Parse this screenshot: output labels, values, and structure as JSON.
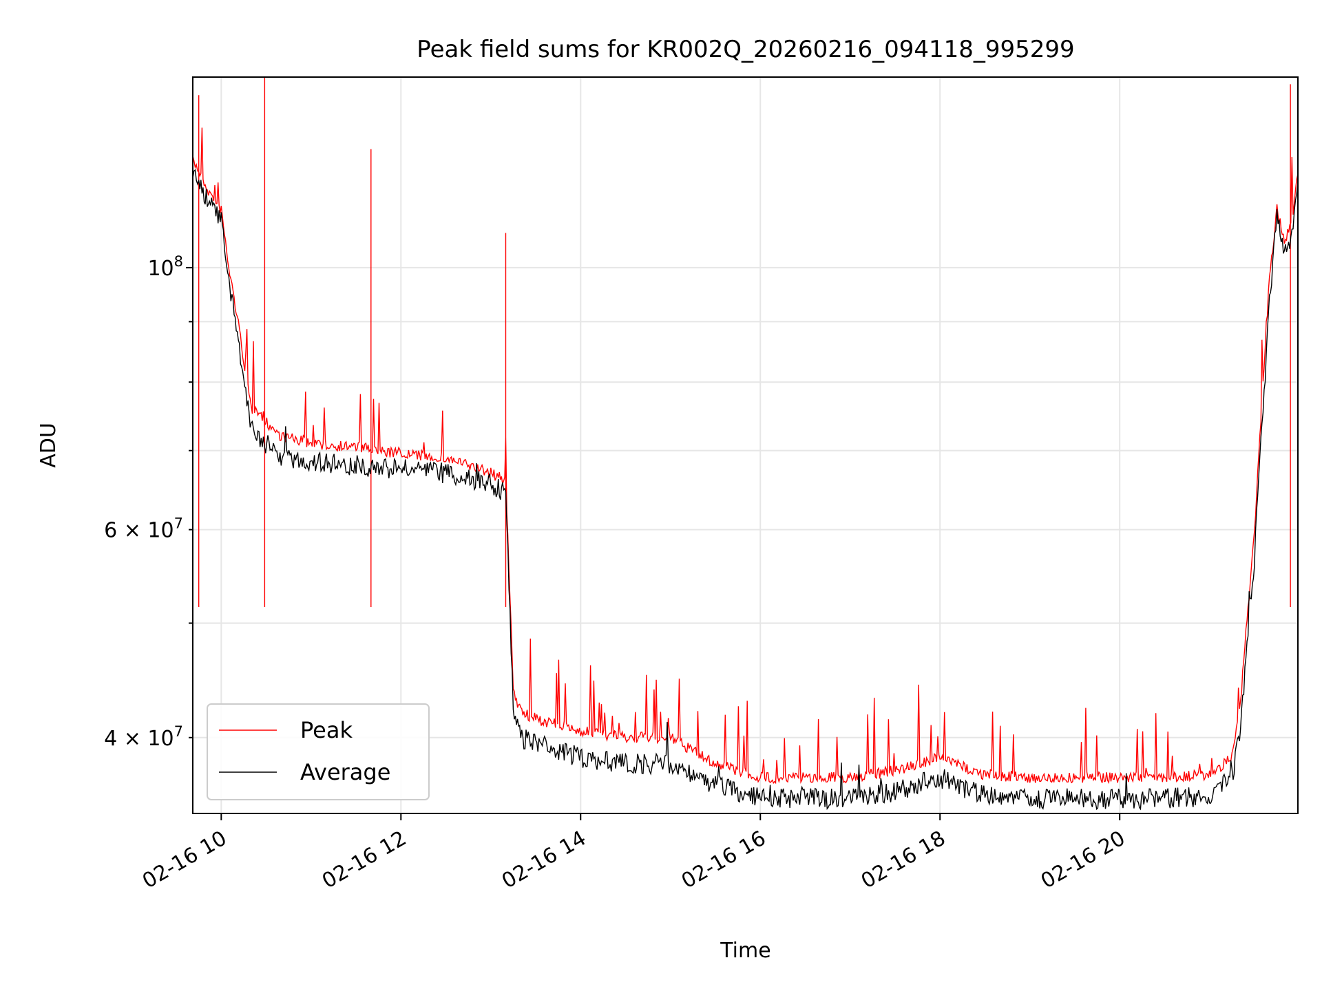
{
  "chart_data": {
    "type": "line",
    "title": "Peak field sums for KR002Q_20260216_094118_995299",
    "xlabel": "Time",
    "ylabel": "ADU",
    "y_scale": "log",
    "grid": true,
    "legend_position": "lower-left",
    "x_range": [
      "2026-02-16 09:41",
      "2026-02-16 21:59"
    ],
    "y_range": [
      34500000,
      145000000
    ],
    "x_ticks": [
      {
        "value": "2026-02-16 10:00",
        "label": "02-16 10"
      },
      {
        "value": "2026-02-16 12:00",
        "label": "02-16 12"
      },
      {
        "value": "2026-02-16 14:00",
        "label": "02-16 14"
      },
      {
        "value": "2026-02-16 16:00",
        "label": "02-16 16"
      },
      {
        "value": "2026-02-16 18:00",
        "label": "02-16 18"
      },
      {
        "value": "2026-02-16 20:00",
        "label": "02-16 20"
      }
    ],
    "y_ticks_major": [
      {
        "value": 100000000,
        "base": "10",
        "exp": "8"
      }
    ],
    "y_ticks_minor": [
      {
        "value": 40000000,
        "base": "4 × 10",
        "exp": "7"
      },
      {
        "value": 50000000
      },
      {
        "value": 60000000,
        "base": "6 × 10",
        "exp": "7"
      },
      {
        "value": 70000000
      },
      {
        "value": 80000000
      },
      {
        "value": 90000000
      }
    ],
    "series": [
      {
        "name": "Peak",
        "color": "#ff0000",
        "x": [
          "2026-02-16 09:41",
          "2026-02-16 09:45",
          "2026-02-16 09:50",
          "2026-02-16 09:55",
          "2026-02-16 10:00",
          "2026-02-16 10:05",
          "2026-02-16 10:10",
          "2026-02-16 10:20",
          "2026-02-16 10:40",
          "2026-02-16 11:00",
          "2026-02-16 11:30",
          "2026-02-16 12:00",
          "2026-02-16 12:30",
          "2026-02-16 13:00",
          "2026-02-16 13:10",
          "2026-02-16 13:15",
          "2026-02-16 13:20",
          "2026-02-16 13:30",
          "2026-02-16 14:00",
          "2026-02-16 14:30",
          "2026-02-16 15:00",
          "2026-02-16 15:30",
          "2026-02-16 16:00",
          "2026-02-16 16:30",
          "2026-02-16 17:00",
          "2026-02-16 17:30",
          "2026-02-16 17:45",
          "2026-02-16 18:00",
          "2026-02-16 18:15",
          "2026-02-16 18:30",
          "2026-02-16 19:00",
          "2026-02-16 19:30",
          "2026-02-16 20:00",
          "2026-02-16 20:30",
          "2026-02-16 21:00",
          "2026-02-16 21:15",
          "2026-02-16 21:20",
          "2026-02-16 21:30",
          "2026-02-16 21:40",
          "2026-02-16 21:45",
          "2026-02-16 21:50",
          "2026-02-16 21:55",
          "2026-02-16 21:59"
        ],
        "y": [
          123000000,
          121000000,
          117000000,
          114000000,
          112000000,
          100000000,
          92000000,
          76000000,
          72000000,
          71000000,
          70500000,
          69500000,
          69000000,
          67000000,
          66000000,
          44000000,
          42000000,
          41500000,
          40500000,
          40000000,
          40000000,
          38000000,
          37000000,
          37000000,
          37000000,
          37500000,
          38000000,
          38500000,
          37800000,
          37200000,
          37000000,
          37000000,
          37000000,
          37000000,
          37200000,
          38500000,
          42000000,
          60000000,
          98000000,
          112000000,
          105000000,
          110000000,
          120000000
        ],
        "spikes": [
          {
            "x": "2026-02-16 09:45",
            "y": 140000000
          },
          {
            "x": "2026-02-16 10:29",
            "y": 145000000
          },
          {
            "x": "2026-02-16 11:40",
            "y": 126000000
          },
          {
            "x": "2026-02-16 13:10",
            "y": 107000000
          },
          {
            "x": "2026-02-16 21:54",
            "y": 143000000
          }
        ]
      },
      {
        "name": "Average",
        "color": "#000000",
        "x": [
          "2026-02-16 09:41",
          "2026-02-16 09:45",
          "2026-02-16 09:50",
          "2026-02-16 09:55",
          "2026-02-16 10:00",
          "2026-02-16 10:05",
          "2026-02-16 10:10",
          "2026-02-16 10:20",
          "2026-02-16 10:40",
          "2026-02-16 11:00",
          "2026-02-16 11:30",
          "2026-02-16 12:00",
          "2026-02-16 12:30",
          "2026-02-16 13:00",
          "2026-02-16 13:10",
          "2026-02-16 13:15",
          "2026-02-16 13:20",
          "2026-02-16 13:30",
          "2026-02-16 14:00",
          "2026-02-16 14:30",
          "2026-02-16 15:00",
          "2026-02-16 15:30",
          "2026-02-16 16:00",
          "2026-02-16 16:30",
          "2026-02-16 17:00",
          "2026-02-16 17:30",
          "2026-02-16 17:45",
          "2026-02-16 18:00",
          "2026-02-16 18:15",
          "2026-02-16 18:30",
          "2026-02-16 19:00",
          "2026-02-16 19:30",
          "2026-02-16 20:00",
          "2026-02-16 20:30",
          "2026-02-16 21:00",
          "2026-02-16 21:15",
          "2026-02-16 21:20",
          "2026-02-16 21:30",
          "2026-02-16 21:40",
          "2026-02-16 21:45",
          "2026-02-16 21:50",
          "2026-02-16 21:55",
          "2026-02-16 21:59"
        ],
        "y": [
          121000000,
          118000000,
          115000000,
          112000000,
          110000000,
          97000000,
          89000000,
          73000000,
          69000000,
          68500000,
          68000000,
          67500000,
          67000000,
          65500000,
          64500000,
          42000000,
          40000000,
          39500000,
          38500000,
          38000000,
          38000000,
          36500000,
          35500000,
          35500000,
          35500000,
          36000000,
          36500000,
          37000000,
          36300000,
          35800000,
          35500000,
          35500000,
          35500000,
          35500000,
          35700000,
          37000000,
          40000000,
          57000000,
          94000000,
          110000000,
          102000000,
          106000000,
          118000000
        ]
      }
    ]
  }
}
